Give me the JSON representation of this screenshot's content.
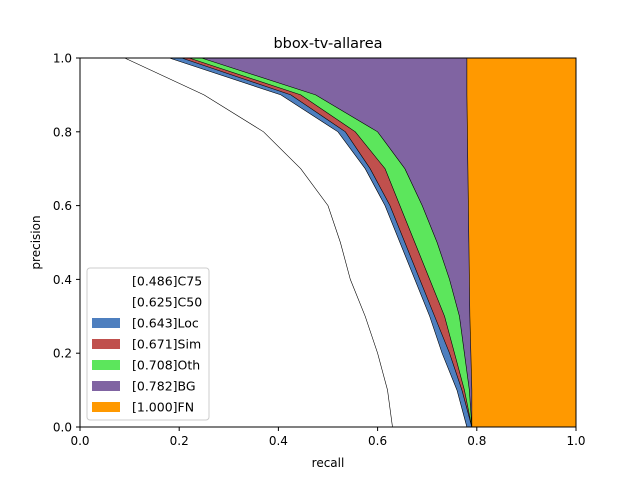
{
  "chart_data": {
    "type": "area",
    "title": "bbox-tv-allarea",
    "xlabel": "recall",
    "ylabel": "precision",
    "xlim": [
      0,
      1
    ],
    "ylim": [
      0,
      1
    ],
    "x_ticks": [
      "0.0",
      "0.2",
      "0.4",
      "0.6",
      "0.8",
      "1.0"
    ],
    "y_ticks": [
      "0.0",
      "0.2",
      "0.4",
      "0.6",
      "0.8",
      "1.0"
    ],
    "grid": false,
    "legend_position": "lower-left",
    "precision_levels": [
      0,
      0.1,
      0.2,
      0.3,
      0.4,
      0.5,
      0.6,
      0.7,
      0.8,
      0.9,
      1.0
    ],
    "series": [
      {
        "name": "[0.486]C75",
        "color": "#ffffff",
        "recall": [
          0.63,
          0.62,
          0.6,
          0.575,
          0.545,
          0.525,
          0.5,
          0.445,
          0.37,
          0.25,
          0.09
        ]
      },
      {
        "name": "[0.625]C50",
        "color": "#ffffff",
        "recall": [
          0.78,
          0.76,
          0.73,
          0.705,
          0.675,
          0.645,
          0.615,
          0.575,
          0.52,
          0.405,
          0.18
        ]
      },
      {
        "name": "[0.643]Loc",
        "color": "#4e7fbf",
        "recall": [
          0.79,
          0.77,
          0.745,
          0.715,
          0.685,
          0.655,
          0.625,
          0.585,
          0.535,
          0.425,
          0.205
        ]
      },
      {
        "name": "[0.671]Sim",
        "color": "#c0504d",
        "recall": [
          0.79,
          0.775,
          0.755,
          0.735,
          0.705,
          0.675,
          0.645,
          0.615,
          0.555,
          0.445,
          0.22
        ]
      },
      {
        "name": "[0.708]Oth",
        "color": "#5ce65c",
        "recall": [
          0.79,
          0.785,
          0.775,
          0.765,
          0.745,
          0.72,
          0.69,
          0.655,
          0.6,
          0.475,
          0.245
        ]
      },
      {
        "name": "[0.782]BG",
        "color": "#8064a2",
        "recall": [
          0.79,
          0.79,
          0.788,
          0.786,
          0.785,
          0.784,
          0.783,
          0.782,
          0.781,
          0.78,
          0.78
        ]
      },
      {
        "name": "[1.000]FN",
        "color": "#ff9900",
        "recall": [
          1,
          1,
          1,
          1,
          1,
          1,
          1,
          1,
          1,
          1,
          1
        ]
      }
    ]
  }
}
